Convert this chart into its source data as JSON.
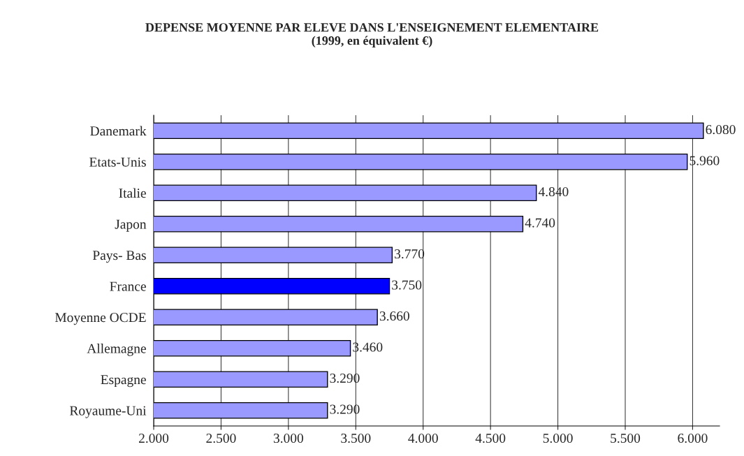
{
  "chart_data": {
    "type": "bar",
    "orientation": "horizontal",
    "title": "DEPENSE MOYENNE PAR ELEVE DANS L'ENSEIGNEMENT ELEMENTAIRE\n(1999, en équivalent €)",
    "categories": [
      "Danemark",
      "Etats-Unis",
      "Italie",
      "Japon",
      "Pays- Bas",
      "France",
      "Moyenne OCDE",
      "Allemagne",
      "Espagne",
      "Royaume-Uni"
    ],
    "values": [
      6080,
      5960,
      4840,
      4740,
      3770,
      3750,
      3660,
      3460,
      3290,
      3290
    ],
    "value_labels": [
      "6.080",
      "5.960",
      "4.840",
      "4.740",
      "3.770",
      "3.750",
      "3.660",
      "3.460",
      "3.290",
      "3.290"
    ],
    "colors": [
      "#9999ff",
      "#9999ff",
      "#9999ff",
      "#9999ff",
      "#9999ff",
      "#0000ff",
      "#9999ff",
      "#9999ff",
      "#9999ff",
      "#9999ff"
    ],
    "xlim": [
      2000,
      6200
    ],
    "xticks": [
      {
        "value": 2000,
        "label": "2.000"
      },
      {
        "value": 2500,
        "label": "2.500"
      },
      {
        "value": 3000,
        "label": "3.000"
      },
      {
        "value": 3500,
        "label": "3.500"
      },
      {
        "value": 4000,
        "label": "4.000"
      },
      {
        "value": 4500,
        "label": "4.500"
      },
      {
        "value": 5000,
        "label": "5.000"
      },
      {
        "value": 5500,
        "label": "5.500"
      },
      {
        "value": 6000,
        "label": "6.000"
      }
    ],
    "grid": "x",
    "legend": false
  }
}
